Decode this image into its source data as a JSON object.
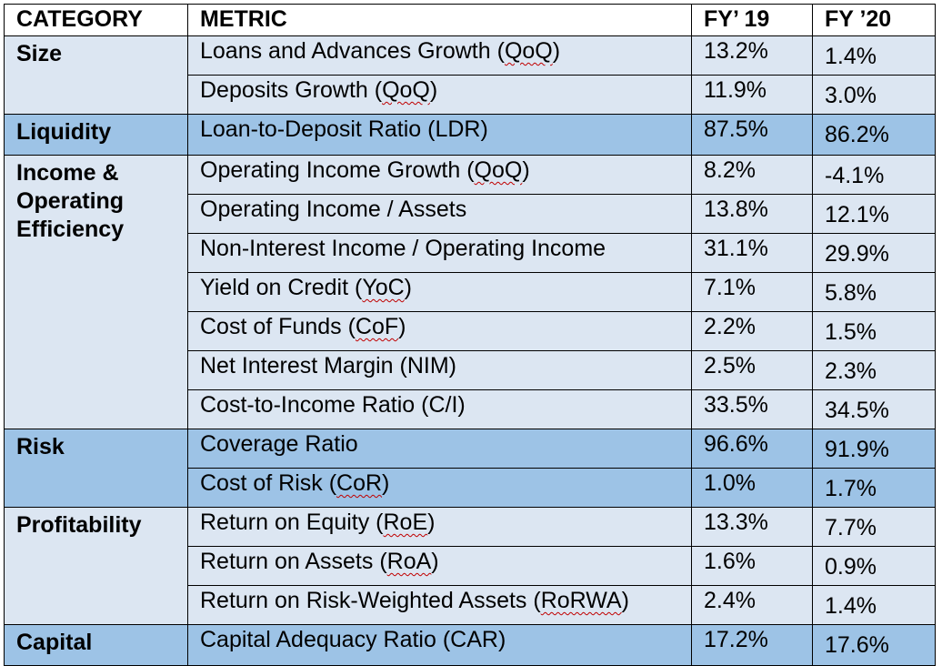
{
  "table": {
    "headers": [
      "CATEGORY",
      "METRIC",
      "FY’ 19",
      "FY ’20"
    ],
    "groups": [
      {
        "category": "Size",
        "shade": "light",
        "rows": [
          {
            "metric_pre": "Loans and Advances Growth (",
            "metric_abbr": "QoQ",
            "metric_post": ")",
            "fy19": "13.2%",
            "fy20": "1.4%"
          },
          {
            "metric_pre": "Deposits Growth (",
            "metric_abbr": "QoQ",
            "metric_post": ")",
            "fy19": "11.9%",
            "fy20": "3.0%"
          }
        ]
      },
      {
        "category": "Liquidity",
        "shade": "dark",
        "rows": [
          {
            "metric_pre": "Loan-to-Deposit Ratio (LDR)",
            "metric_abbr": "",
            "metric_post": "",
            "fy19": "87.5%",
            "fy20": "86.2%"
          }
        ]
      },
      {
        "category": "Income & Operating Efficiency",
        "shade": "light",
        "rows": [
          {
            "metric_pre": "Operating Income Growth (",
            "metric_abbr": "QoQ",
            "metric_post": ")",
            "fy19": "8.2%",
            "fy20": "-4.1%"
          },
          {
            "metric_pre": "Operating Income / Assets",
            "metric_abbr": "",
            "metric_post": "",
            "fy19": "13.8%",
            "fy20": "12.1%"
          },
          {
            "metric_pre": "Non-Interest Income / Operating Income",
            "metric_abbr": "",
            "metric_post": "",
            "fy19": "31.1%",
            "fy20": "29.9%"
          },
          {
            "metric_pre": "Yield on Credit (",
            "metric_abbr": "YoC",
            "metric_post": ")",
            "fy19": "7.1%",
            "fy20": "5.8%"
          },
          {
            "metric_pre": "Cost of Funds (",
            "metric_abbr": "CoF",
            "metric_post": ")",
            "fy19": "2.2%",
            "fy20": "1.5%"
          },
          {
            "metric_pre": "Net Interest Margin (NIM)",
            "metric_abbr": "",
            "metric_post": "",
            "fy19": "2.5%",
            "fy20": "2.3%"
          },
          {
            "metric_pre": "Cost-to-Income Ratio (C/I)",
            "metric_abbr": "",
            "metric_post": "",
            "fy19": "33.5%",
            "fy20": "34.5%"
          }
        ]
      },
      {
        "category": "Risk",
        "shade": "dark",
        "rows": [
          {
            "metric_pre": "Coverage Ratio",
            "metric_abbr": "",
            "metric_post": "",
            "fy19": "96.6%",
            "fy20": "91.9%"
          },
          {
            "metric_pre": "Cost of Risk (",
            "metric_abbr": "CoR",
            "metric_post": ")",
            "fy19": "1.0%",
            "fy20": "1.7%"
          }
        ]
      },
      {
        "category": "Profitability",
        "shade": "light",
        "rows": [
          {
            "metric_pre": "Return on Equity (",
            "metric_abbr": "RoE",
            "metric_post": ")",
            "fy19": "13.3%",
            "fy20": "7.7%"
          },
          {
            "metric_pre": "Return on Assets (",
            "metric_abbr": "RoA",
            "metric_post": ")",
            "fy19": "1.6%",
            "fy20": "0.9%"
          },
          {
            "metric_pre": "Return on Risk-Weighted Assets (",
            "metric_abbr": "RoRWA",
            "metric_post": ")",
            "fy19": "2.4%",
            "fy20": "1.4%"
          }
        ]
      },
      {
        "category": "Capital",
        "shade": "dark",
        "rows": [
          {
            "metric_pre": "Capital Adequacy Ratio (CAR)",
            "metric_abbr": "",
            "metric_post": "",
            "fy19": "17.2%",
            "fy20": "17.6%"
          }
        ]
      }
    ]
  },
  "colors": {
    "light_fill": "#dce6f2",
    "dark_fill": "#9dc3e6",
    "spellcheck_underline": "#c00000"
  }
}
